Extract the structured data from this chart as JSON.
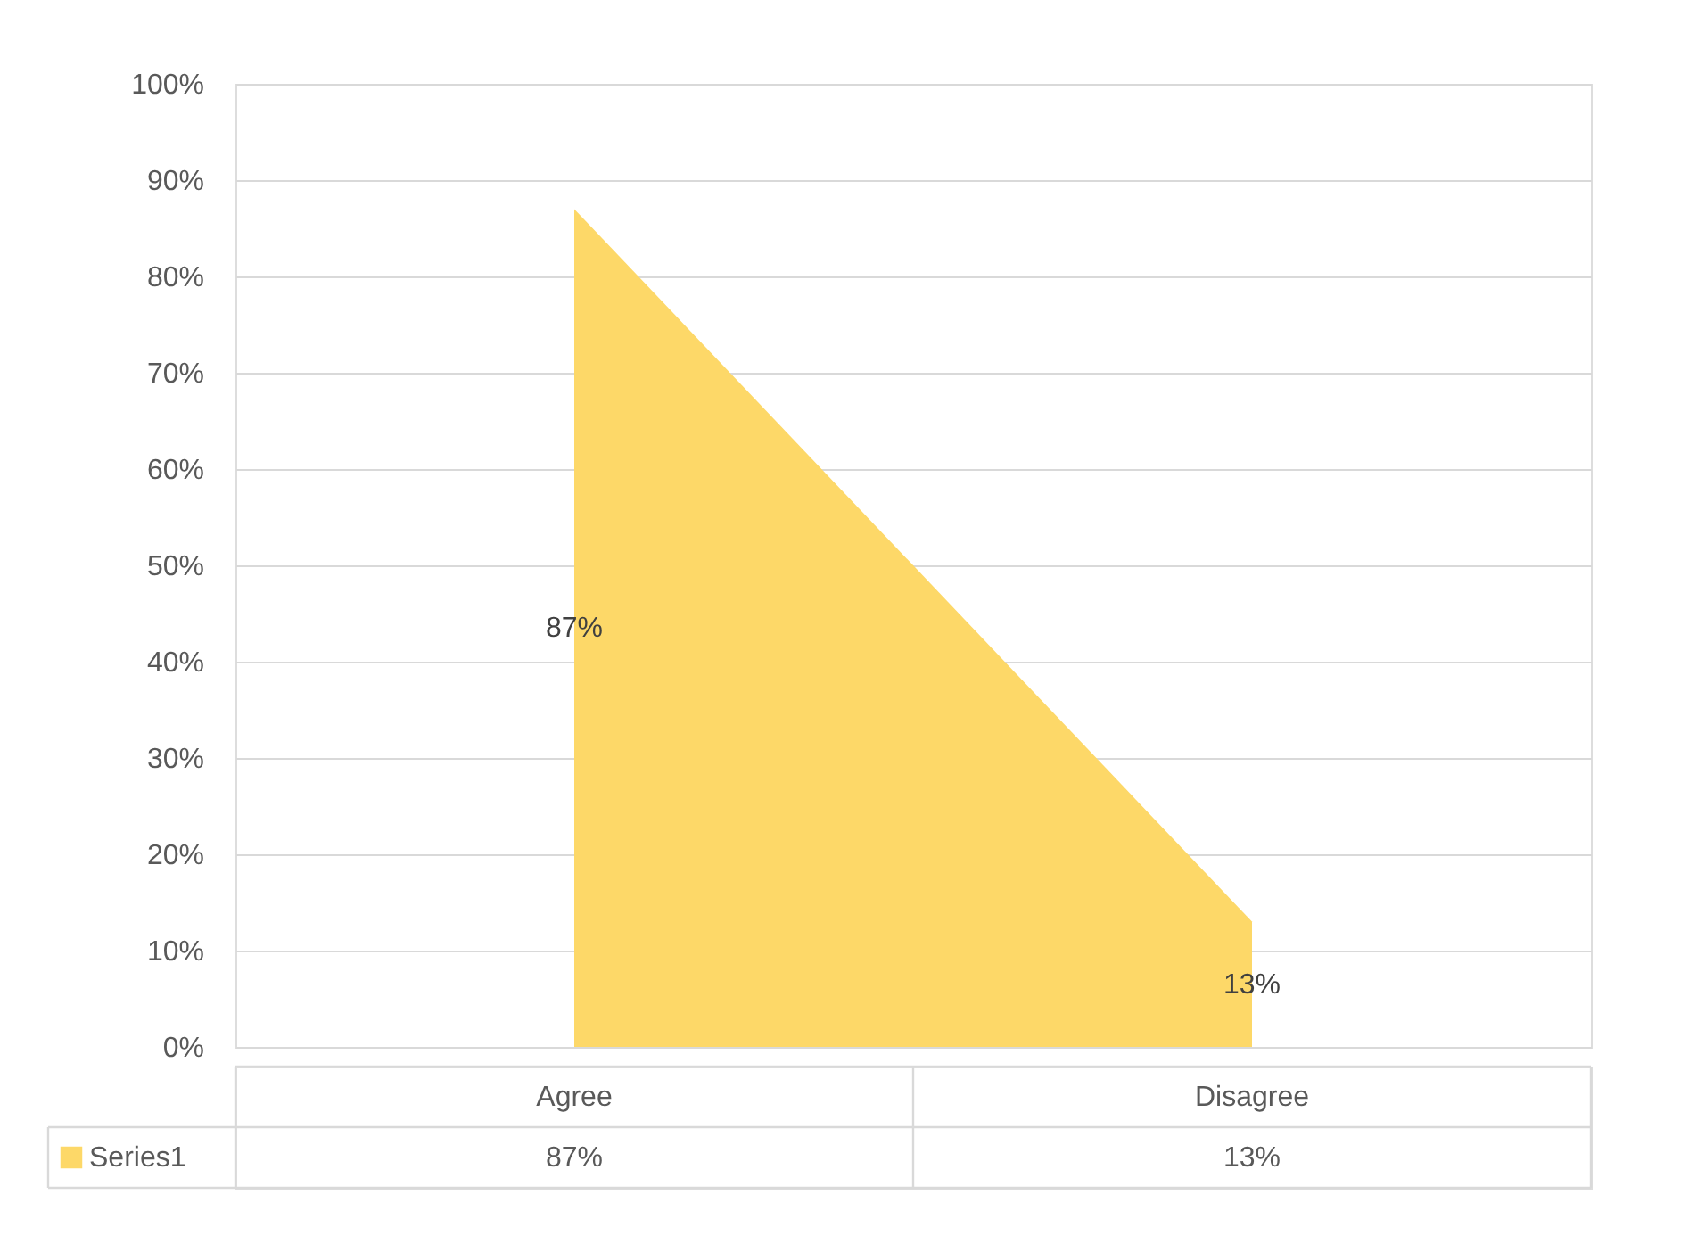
{
  "chart_data": {
    "type": "area",
    "categories": [
      "Agree",
      "Disagree"
    ],
    "series": [
      {
        "name": "Series1",
        "color": "#fdd868",
        "values": [
          87,
          13
        ],
        "value_labels": [
          "87%",
          "13%"
        ]
      }
    ],
    "ylim": [
      0,
      100
    ],
    "yticks": [
      {
        "value": 0,
        "label": "0%"
      },
      {
        "value": 10,
        "label": "10%"
      },
      {
        "value": 20,
        "label": "20%"
      },
      {
        "value": 30,
        "label": "30%"
      },
      {
        "value": 40,
        "label": "40%"
      },
      {
        "value": 50,
        "label": "50%"
      },
      {
        "value": 60,
        "label": "60%"
      },
      {
        "value": 70,
        "label": "70%"
      },
      {
        "value": 80,
        "label": "80%"
      },
      {
        "value": 90,
        "label": "90%"
      },
      {
        "value": 100,
        "label": "100%"
      }
    ],
    "grid": "y",
    "legend": "bottom"
  }
}
